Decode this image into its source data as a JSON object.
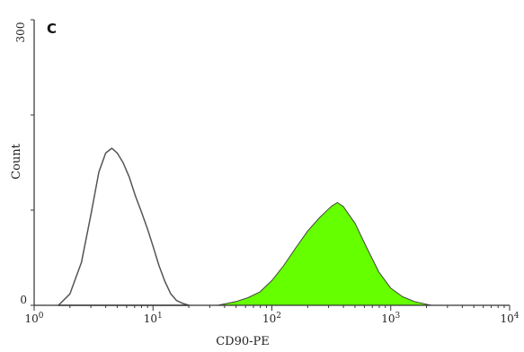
{
  "panel_label": "C",
  "chart_data": {
    "type": "area",
    "xlabel": "CD90-PE",
    "ylabel": "Count",
    "x_scale": "log",
    "xlim": [
      1,
      10000
    ],
    "ylim": [
      0,
      300
    ],
    "x_ticks": [
      {
        "value": 1,
        "base": "10",
        "exp": "0"
      },
      {
        "value": 10,
        "base": "10",
        "exp": "1"
      },
      {
        "value": 100,
        "base": "10",
        "exp": "2"
      },
      {
        "value": 1000,
        "base": "10",
        "exp": "3"
      },
      {
        "value": 10000,
        "base": "10",
        "exp": "4"
      }
    ],
    "y_ticks": [
      {
        "value": 0,
        "label": "0"
      },
      {
        "value": 300,
        "label": "300"
      }
    ],
    "grid": false,
    "series": [
      {
        "style": "outline",
        "color": "#555555",
        "x": [
          1.6,
          2.0,
          2.5,
          3.0,
          3.5,
          4.0,
          4.5,
          5.0,
          5.6,
          6.3,
          7.1,
          8.0,
          9.0,
          10.0,
          11.2,
          12.6,
          14.1,
          15.8,
          17.8,
          20.0
        ],
        "y": [
          0,
          12,
          45,
          95,
          140,
          160,
          165,
          160,
          150,
          135,
          115,
          98,
          80,
          62,
          42,
          25,
          12,
          5,
          2,
          0
        ]
      },
      {
        "style": "filled",
        "color": "#66ff00",
        "outline_color": "#444444",
        "x": [
          35,
          50,
          63,
          79,
          100,
          126,
          158,
          200,
          251,
          316,
          355,
          398,
          501,
          631,
          794,
          1000,
          1259,
          1585,
          1995,
          2200
        ],
        "y": [
          0,
          4,
          8,
          14,
          26,
          42,
          60,
          78,
          92,
          104,
          108,
          104,
          86,
          60,
          35,
          18,
          9,
          4,
          1,
          0
        ]
      }
    ]
  }
}
